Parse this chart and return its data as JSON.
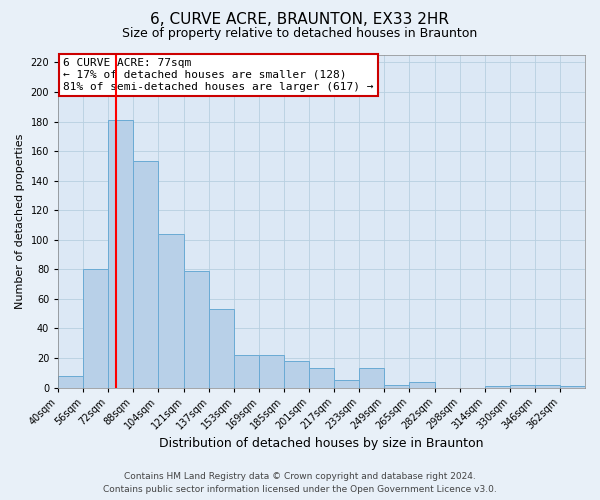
{
  "title": "6, CURVE ACRE, BRAUNTON, EX33 2HR",
  "subtitle": "Size of property relative to detached houses in Braunton",
  "xlabel": "Distribution of detached houses by size in Braunton",
  "ylabel": "Number of detached properties",
  "bar_labels": [
    "40sqm",
    "56sqm",
    "72sqm",
    "88sqm",
    "104sqm",
    "121sqm",
    "137sqm",
    "153sqm",
    "169sqm",
    "185sqm",
    "201sqm",
    "217sqm",
    "233sqm",
    "249sqm",
    "265sqm",
    "282sqm",
    "298sqm",
    "314sqm",
    "330sqm",
    "346sqm",
    "362sqm"
  ],
  "bar_values": [
    8,
    80,
    181,
    153,
    104,
    79,
    53,
    22,
    22,
    18,
    13,
    5,
    13,
    2,
    4,
    0,
    0,
    1,
    2,
    2,
    1
  ],
  "bar_color": "#b8d0e8",
  "bar_edge_color": "#6aaad4",
  "property_line_x": 77,
  "bin_edges": [
    40,
    56,
    72,
    88,
    104,
    121,
    137,
    153,
    169,
    185,
    201,
    217,
    233,
    249,
    265,
    282,
    298,
    314,
    330,
    346,
    362,
    378
  ],
  "ylim": [
    0,
    225
  ],
  "yticks": [
    0,
    20,
    40,
    60,
    80,
    100,
    120,
    140,
    160,
    180,
    200,
    220
  ],
  "annotation_text": "6 CURVE ACRE: 77sqm\n← 17% of detached houses are smaller (128)\n81% of semi-detached houses are larger (617) →",
  "annotation_box_color": "#ffffff",
  "annotation_box_edge": "#cc0000",
  "footer1": "Contains HM Land Registry data © Crown copyright and database right 2024.",
  "footer2": "Contains public sector information licensed under the Open Government Licence v3.0.",
  "title_fontsize": 11,
  "subtitle_fontsize": 9,
  "xlabel_fontsize": 9,
  "ylabel_fontsize": 8,
  "tick_fontsize": 7,
  "annotation_fontsize": 8,
  "footer_fontsize": 6.5,
  "grid_color": "#b8cfe0",
  "background_color": "#e8f0f8",
  "plot_bg_color": "#dce8f5"
}
